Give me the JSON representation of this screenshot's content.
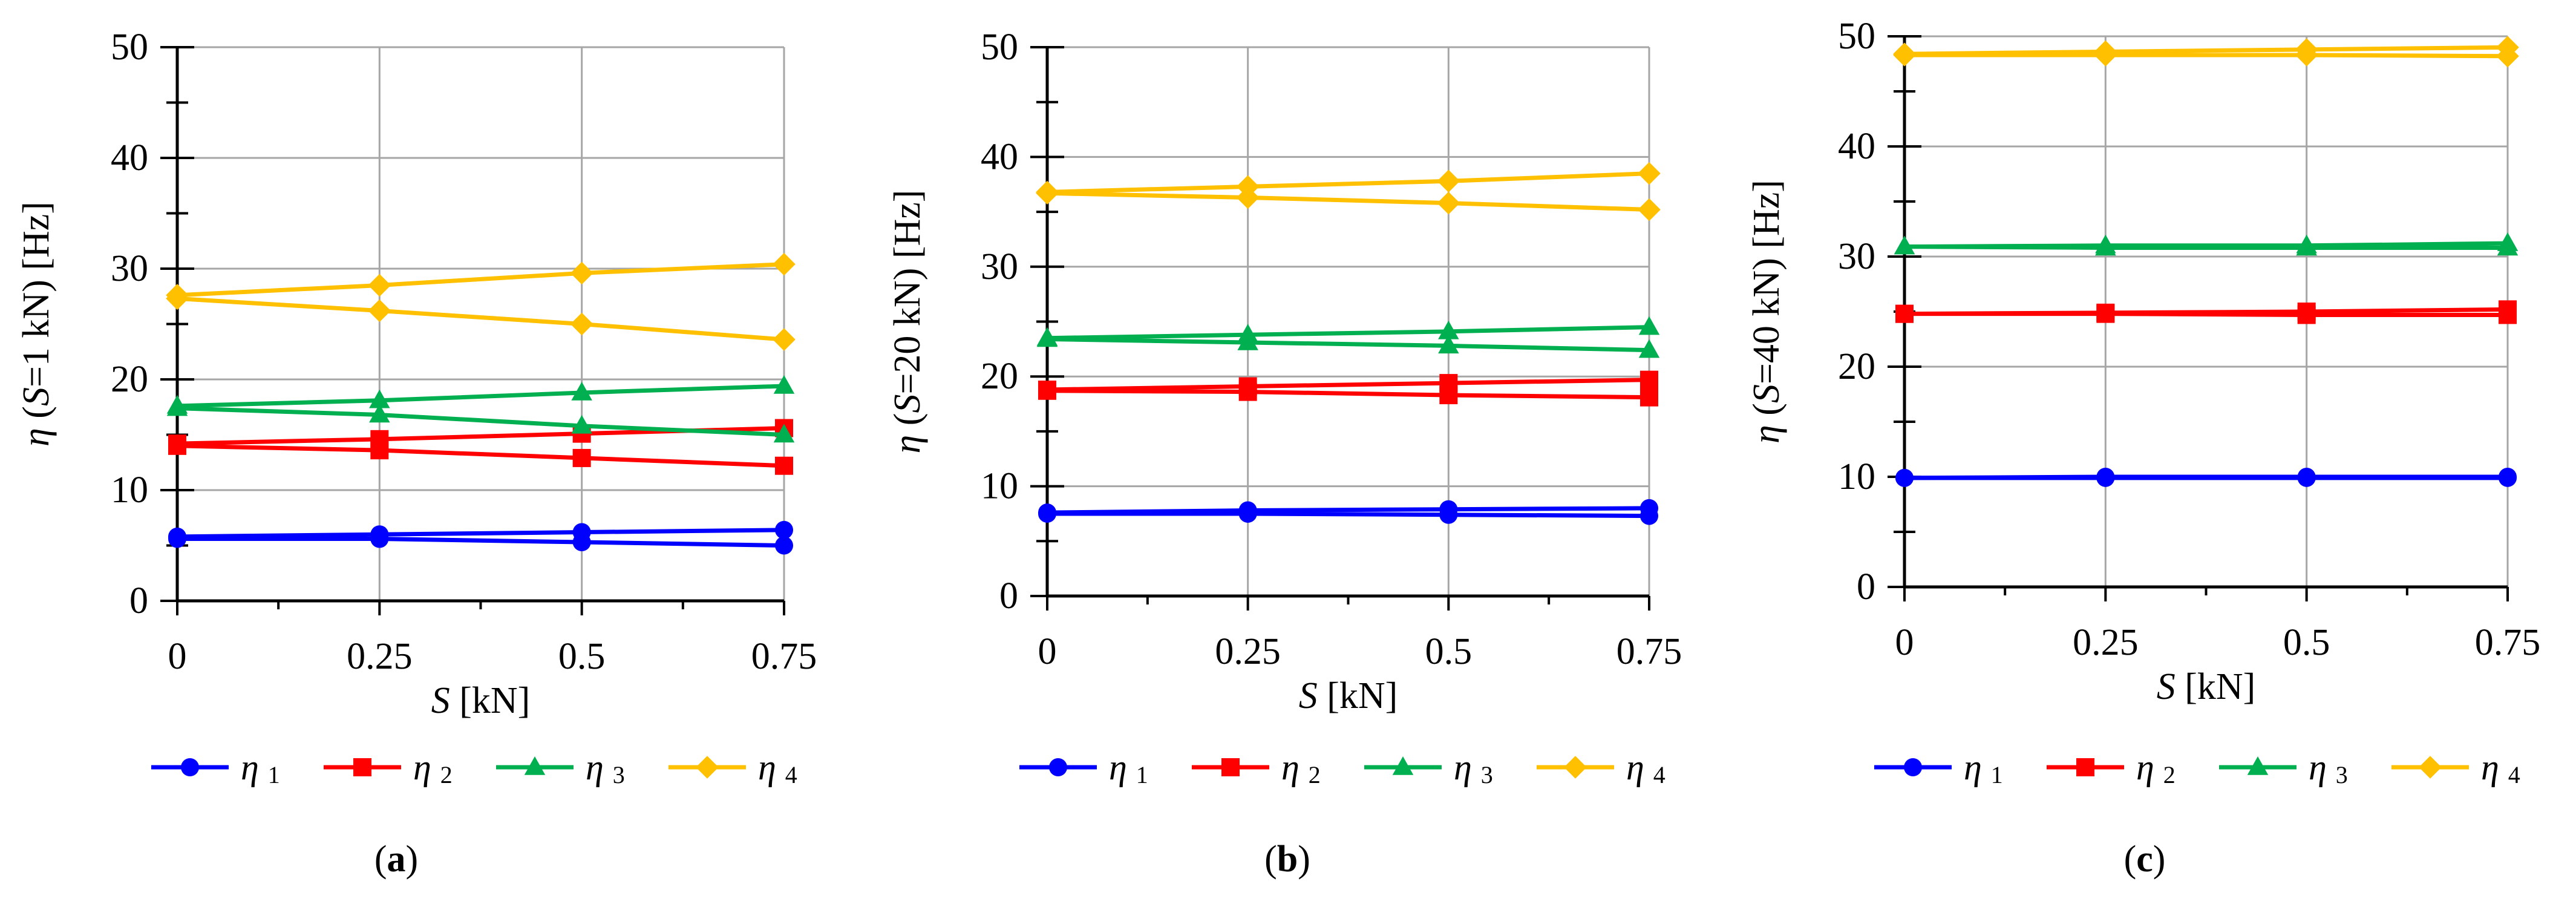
{
  "figure": {
    "colors": {
      "eta1": "#0000ff",
      "eta2": "#ff0000",
      "eta3": "#00b050",
      "eta4": "#ffc000",
      "grid": "#a6a6a6",
      "axis": "#000000"
    }
  },
  "chart_data": [
    {
      "type": "line",
      "panel_label": "(a)",
      "panel_label_parts": {
        "open": "(",
        "letter": "a",
        "close": ")"
      },
      "ylabel": "η (S=1 kN)  [Hz]",
      "ylabel_parts": {
        "eta": "η",
        "open": " (",
        "s": "S",
        "rest": "=1 kN)  [Hz]"
      },
      "xlabel": "S [kN]",
      "xlabel_parts": {
        "s": "S",
        "rest": " [kN]"
      },
      "ylim": [
        0,
        50
      ],
      "yticks": [
        0,
        10,
        20,
        30,
        40,
        50
      ],
      "ytick_labels": [
        "0",
        "10",
        "20",
        "30",
        "40",
        "50"
      ],
      "x": [
        0,
        0.25,
        0.5,
        0.75
      ],
      "xtick_labels": [
        "0",
        "0.25",
        "0.5",
        "0.75"
      ],
      "grid": true,
      "legend_position": "bottom",
      "series": [
        {
          "name": "η1",
          "symbol": "η",
          "sub": "1",
          "marker": "circle",
          "color": "#0000ff",
          "upper": [
            5.8,
            6.0,
            6.2,
            6.4
          ],
          "lower": [
            5.6,
            5.6,
            5.3,
            5.0
          ]
        },
        {
          "name": "η2",
          "symbol": "η",
          "sub": "2",
          "marker": "square",
          "color": "#ff0000",
          "upper": [
            14.2,
            14.6,
            15.1,
            15.6
          ],
          "lower": [
            14.0,
            13.6,
            12.9,
            12.2
          ]
        },
        {
          "name": "η3",
          "symbol": "η",
          "sub": "3",
          "marker": "triangle",
          "color": "#00b050",
          "upper": [
            17.6,
            18.1,
            18.8,
            19.4
          ],
          "lower": [
            17.4,
            16.8,
            15.8,
            15.0
          ]
        },
        {
          "name": "η4",
          "symbol": "η",
          "sub": "4",
          "marker": "diamond",
          "color": "#ffc000",
          "upper": [
            27.6,
            28.5,
            29.6,
            30.4
          ],
          "lower": [
            27.3,
            26.2,
            25.0,
            23.6
          ]
        }
      ]
    },
    {
      "type": "line",
      "panel_label": "(b)",
      "panel_label_parts": {
        "open": "(",
        "letter": "b",
        "close": ")"
      },
      "ylabel": "η (S=20 kN)  [Hz]",
      "ylabel_parts": {
        "eta": "η",
        "open": " (",
        "s": "S",
        "rest": "=20 kN)  [Hz]"
      },
      "xlabel": "S [kN]",
      "xlabel_parts": {
        "s": "S",
        "rest": " [kN]"
      },
      "ylim": [
        0,
        50
      ],
      "yticks": [
        0,
        10,
        20,
        30,
        40,
        50
      ],
      "ytick_labels": [
        "0",
        "10",
        "20",
        "30",
        "40",
        "50"
      ],
      "x": [
        0,
        0.25,
        0.5,
        0.75
      ],
      "xtick_labels": [
        "0",
        "0.25",
        "0.5",
        "0.75"
      ],
      "grid": true,
      "legend_position": "bottom",
      "series": [
        {
          "name": "η1",
          "symbol": "η",
          "sub": "1",
          "marker": "circle",
          "color": "#0000ff",
          "upper": [
            7.6,
            7.8,
            7.9,
            8.0
          ],
          "lower": [
            7.5,
            7.5,
            7.4,
            7.3
          ]
        },
        {
          "name": "η2",
          "symbol": "η",
          "sub": "2",
          "marker": "square",
          "color": "#ff0000",
          "upper": [
            18.8,
            19.1,
            19.4,
            19.7
          ],
          "lower": [
            18.7,
            18.6,
            18.3,
            18.1
          ]
        },
        {
          "name": "η3",
          "symbol": "η",
          "sub": "3",
          "marker": "triangle",
          "color": "#00b050",
          "upper": [
            23.5,
            23.8,
            24.1,
            24.5
          ],
          "lower": [
            23.4,
            23.1,
            22.8,
            22.4
          ]
        },
        {
          "name": "η4",
          "symbol": "η",
          "sub": "4",
          "marker": "diamond",
          "color": "#ffc000",
          "upper": [
            36.8,
            37.3,
            37.8,
            38.5
          ],
          "lower": [
            36.7,
            36.3,
            35.8,
            35.2
          ]
        }
      ]
    },
    {
      "type": "line",
      "panel_label": "(c)",
      "panel_label_parts": {
        "open": "(",
        "letter": "c",
        "close": ")"
      },
      "ylabel": "η (S=40 kN)  [Hz]",
      "ylabel_parts": {
        "eta": "η",
        "open": " (",
        "s": "S",
        "rest": "=40 kN)  [Hz]"
      },
      "xlabel": "S [kN]",
      "xlabel_parts": {
        "s": "S",
        "rest": " [kN]"
      },
      "ylim": [
        0,
        50
      ],
      "yticks": [
        0,
        10,
        20,
        30,
        40,
        50
      ],
      "ytick_labels": [
        "0",
        "10",
        "20",
        "30",
        "40",
        "50"
      ],
      "x": [
        0,
        0.25,
        0.5,
        0.75
      ],
      "xtick_labels": [
        "0",
        "0.25",
        "0.5",
        "0.75"
      ],
      "grid": true,
      "legend_position": "bottom",
      "series": [
        {
          "name": "η1",
          "symbol": "η",
          "sub": "1",
          "marker": "circle",
          "color": "#0000ff",
          "upper": [
            9.9,
            10.0,
            10.0,
            10.0
          ],
          "lower": [
            9.9,
            9.9,
            9.9,
            9.9
          ]
        },
        {
          "name": "η2",
          "symbol": "η",
          "sub": "2",
          "marker": "square",
          "color": "#ff0000",
          "upper": [
            24.8,
            24.9,
            25.0,
            25.2
          ],
          "lower": [
            24.8,
            24.8,
            24.7,
            24.7
          ]
        },
        {
          "name": "η3",
          "symbol": "η",
          "sub": "3",
          "marker": "triangle",
          "color": "#00b050",
          "upper": [
            30.9,
            31.0,
            31.0,
            31.2
          ],
          "lower": [
            30.9,
            30.8,
            30.8,
            30.8
          ]
        },
        {
          "name": "η4",
          "symbol": "η",
          "sub": "4",
          "marker": "diamond",
          "color": "#ffc000",
          "upper": [
            48.4,
            48.6,
            48.8,
            49.0
          ],
          "lower": [
            48.3,
            48.3,
            48.3,
            48.2
          ]
        }
      ]
    }
  ]
}
